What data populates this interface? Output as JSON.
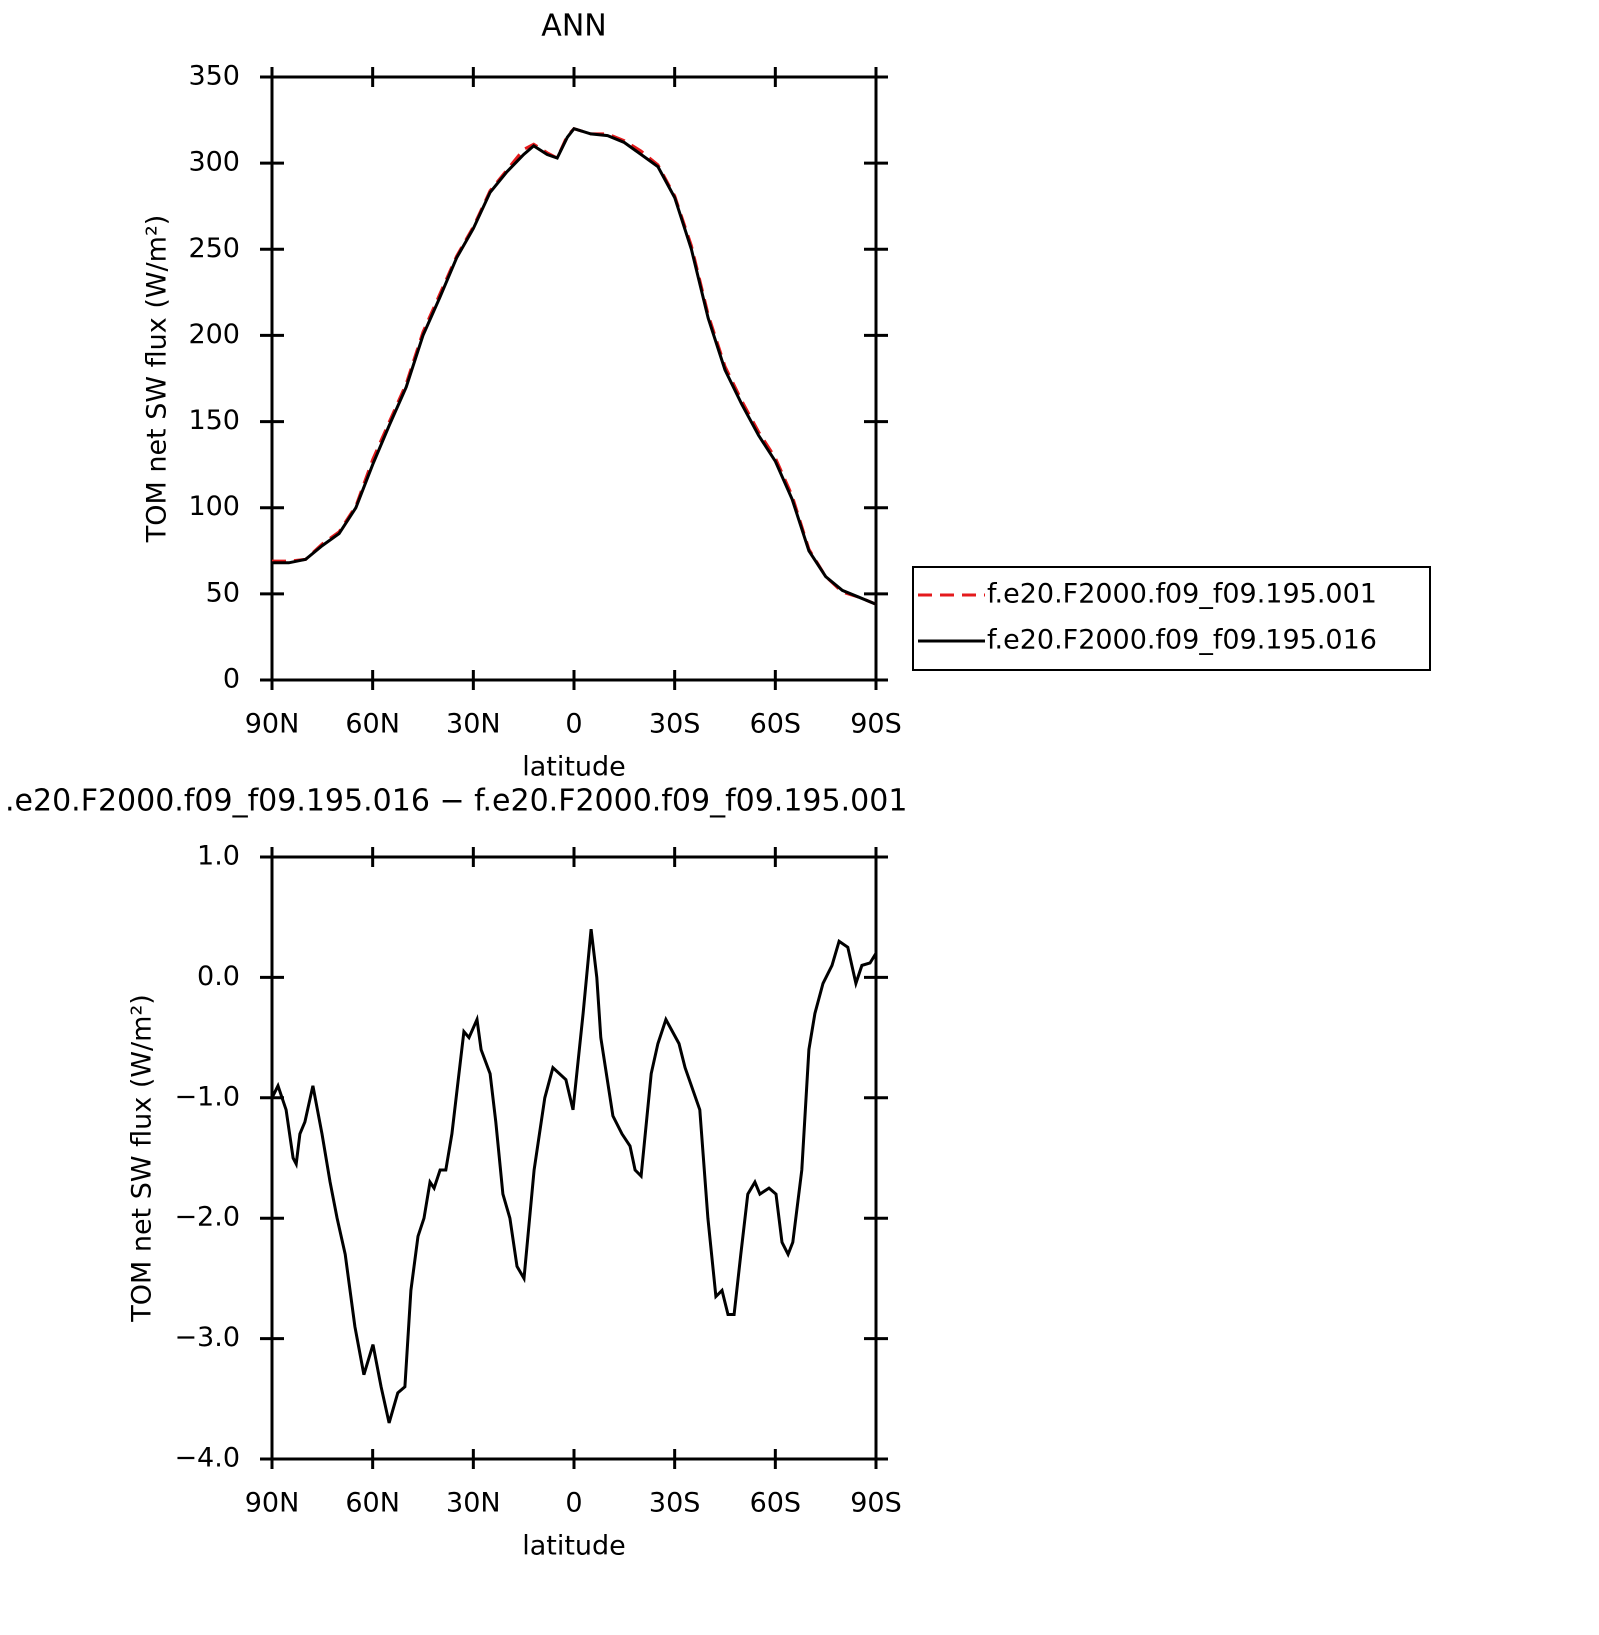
{
  "chart_data": [
    {
      "type": "line",
      "title": "ANN",
      "xlabel": "latitude",
      "ylabel": "TOM net SW flux (W/m²)",
      "xlim": [
        90,
        -90
      ],
      "ylim": [
        0,
        350
      ],
      "xticks": [
        {
          "value": 90,
          "label": "90N"
        },
        {
          "value": 60,
          "label": "60N"
        },
        {
          "value": 30,
          "label": "30N"
        },
        0,
        {
          "value": -30,
          "label": "30S"
        },
        {
          "value": -60,
          "label": "60S"
        },
        {
          "value": -90,
          "label": "90S"
        }
      ],
      "yticks": [
        0,
        50,
        100,
        150,
        200,
        250,
        300,
        350
      ],
      "legend": "right",
      "x": [
        90,
        85,
        80,
        75,
        70,
        65,
        60,
        55,
        50,
        45,
        40,
        35,
        30,
        25,
        20,
        15,
        12,
        8,
        5,
        2,
        0,
        -5,
        -10,
        -15,
        -20,
        -25,
        -30,
        -35,
        -40,
        -45,
        -50,
        -55,
        -60,
        -65,
        -70,
        -75,
        -80,
        -85,
        -90
      ],
      "series": [
        {
          "name": "f.e20.F2000.f09_f09.195.001",
          "color": "#e41a1c",
          "line_style": "dashed",
          "values": [
            69,
            69,
            70,
            79,
            86,
            101,
            128,
            150,
            172,
            202,
            224,
            246,
            263,
            284,
            296,
            308,
            311,
            306,
            303,
            316,
            320,
            317,
            317,
            313,
            307,
            299,
            281,
            252,
            212,
            182,
            162,
            144,
            129,
            107,
            76,
            60,
            51,
            48,
            44
          ]
        },
        {
          "name": "f.e20.F2000.f09_f09.195.016",
          "color": "#000000",
          "line_style": "solid",
          "values": [
            68,
            68,
            70,
            78,
            85,
            100,
            125,
            148,
            170,
            200,
            222,
            245,
            262,
            283,
            295,
            305,
            310,
            305,
            303,
            315,
            320,
            317,
            316,
            312,
            305,
            298,
            280,
            250,
            210,
            180,
            160,
            142,
            127,
            105,
            75,
            60,
            52,
            48,
            44
          ]
        }
      ]
    },
    {
      "type": "line",
      "title": ".e20.F2000.f09_f09.195.016 − f.e20.F2000.f09_f09.195.001",
      "xlabel": "latitude",
      "ylabel": "TOM net SW flux (W/m²)",
      "xlim": [
        90,
        -90
      ],
      "ylim": [
        -4,
        1
      ],
      "xticks": [
        {
          "value": 90,
          "label": "90N"
        },
        {
          "value": 60,
          "label": "60N"
        },
        {
          "value": 30,
          "label": "30N"
        },
        0,
        {
          "value": -30,
          "label": "30S"
        },
        {
          "value": -60,
          "label": "60S"
        },
        {
          "value": -90,
          "label": "90S"
        }
      ],
      "yticks": [
        {
          "value": -4,
          "label": "−4.0"
        },
        {
          "value": -3,
          "label": "−3.0"
        },
        {
          "value": -2,
          "label": "−2.0"
        },
        {
          "value": -1,
          "label": "−1.0"
        },
        {
          "value": 0,
          "label": "0.0"
        },
        {
          "value": 1,
          "label": "1.0"
        }
      ],
      "x": [
        90,
        88.2,
        85.8,
        83.7,
        82.8,
        81.7,
        80.2,
        77.8,
        75.1,
        72.7,
        70.6,
        68.2,
        65.3,
        62.6,
        59.9,
        57.5,
        55.1,
        52.5,
        50.4,
        48.6,
        46.5,
        44.7,
        42.9,
        41.7,
        39.9,
        38.2,
        36.4,
        32.8,
        31.3,
        28.9,
        27.7,
        25,
        23.3,
        21.2,
        19.1,
        17,
        14.9,
        11.9,
        8.7,
        6.3,
        2.4,
        0.3,
        -2.7,
        -5.1,
        -6.8,
        -8,
        -11.6,
        -14.3,
        -16.7,
        -18.2,
        -20,
        -23,
        -25,
        -27.4,
        -31.3,
        -33.1,
        -37.5,
        -39.9,
        -42.3,
        -44.1,
        -45.9,
        -47.7,
        -49.7,
        -51.8,
        -53.9,
        -55.4,
        -58.1,
        -60.2,
        -62,
        -63.8,
        -65.2,
        -67.9,
        -70,
        -71.8,
        -74.2,
        -76.9,
        -79,
        -81.6,
        -84,
        -85.8,
        -88.2,
        -90
      ],
      "series": [
        {
          "color": "#000000",
          "line_style": "solid",
          "values": [
            -1,
            -0.9,
            -1.1,
            -1.5,
            -1.55,
            -1.3,
            -1.2,
            -0.9,
            -1.3,
            -1.7,
            -2,
            -2.3,
            -2.9,
            -3.3,
            -3.05,
            -3.4,
            -3.7,
            -3.45,
            -3.4,
            -2.6,
            -2.15,
            -2,
            -1.7,
            -1.75,
            -1.6,
            -1.6,
            -1.3,
            -0.45,
            -0.5,
            -0.35,
            -0.6,
            -0.8,
            -1.2,
            -1.8,
            -2,
            -2.4,
            -2.5,
            -1.6,
            -1,
            -0.75,
            -0.85,
            -1.1,
            -0.3,
            0.4,
            0,
            -0.5,
            -1.15,
            -1.3,
            -1.4,
            -1.6,
            -1.65,
            -0.8,
            -0.55,
            -0.35,
            -0.55,
            -0.75,
            -1.1,
            -2,
            -2.65,
            -2.6,
            -2.8,
            -2.8,
            -2.3,
            -1.8,
            -1.7,
            -1.8,
            -1.75,
            -1.8,
            -2.2,
            -2.3,
            -2.2,
            -1.6,
            -0.6,
            -0.3,
            -0.05,
            0.1,
            0.3,
            0.25,
            -0.05,
            0.1,
            0.12,
            0.2
          ]
        }
      ]
    }
  ]
}
